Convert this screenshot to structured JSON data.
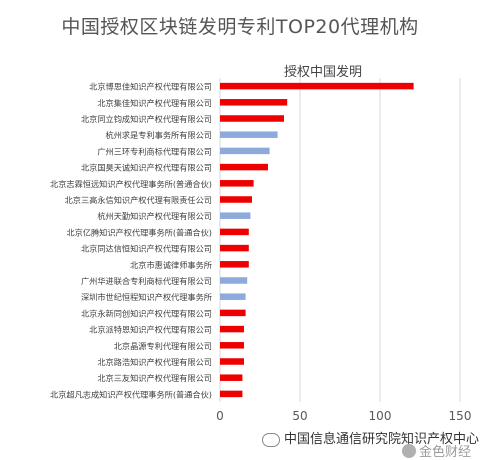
{
  "chart_data": {
    "type": "bar",
    "orientation": "horizontal",
    "title": "中国授权区块链发明专利TOP20代理机构",
    "legend_label": "授权中国发明",
    "categories": [
      "北京博思佳知识产权代理有限公司",
      "北京集佳知识产权代理有限公司",
      "北京同立钧成知识产权代理有限公司",
      "杭州求是专利事务所有限公司",
      "广州三环专利商标代理有限公司",
      "北京国昊天诚知识产权代理有限公司",
      "北京志霖恒远知识产权代理事务所(普通合伙)",
      "北京三高永信知识产权代理有限责任公司",
      "杭州天勤知识产权代理有限公司",
      "北京亿腾知识产权代理事务所(普通合伙)",
      "北京同达信恒知识产权代理有限公司",
      "北京市惠诚律师事务所",
      "广州华进联合专利商标代理有限公司",
      "深圳市世纪恒程知识产权代理事务所",
      "北京永新同创知识产权代理有限公司",
      "北京派特恩知识产权代理有限公司",
      "北京晶源专利代理有限公司",
      "北京路浩知识产权代理有限公司",
      "北京三友知识产权代理有限公司",
      "北京超凡志成知识产权代理事务所(普通合伙)"
    ],
    "values": [
      121,
      42,
      40,
      36,
      31,
      30,
      21,
      20,
      19,
      18,
      18,
      18,
      17,
      16,
      16,
      15,
      15,
      15,
      14,
      14
    ],
    "bar_colors": [
      "#ee0000",
      "#ee0000",
      "#ee0000",
      "#8eaadb",
      "#8eaadb",
      "#ee0000",
      "#ee0000",
      "#ee0000",
      "#8eaadb",
      "#ee0000",
      "#ee0000",
      "#ee0000",
      "#8eaadb",
      "#8eaadb",
      "#ee0000",
      "#ee0000",
      "#ee0000",
      "#ee0000",
      "#ee0000",
      "#ee0000"
    ],
    "xlim": [
      0,
      150
    ],
    "xticks": [
      0,
      50,
      100,
      150
    ],
    "grid": true
  },
  "watermark": "中国信息通信研究院知识产权中心",
  "logo": "金色财经"
}
